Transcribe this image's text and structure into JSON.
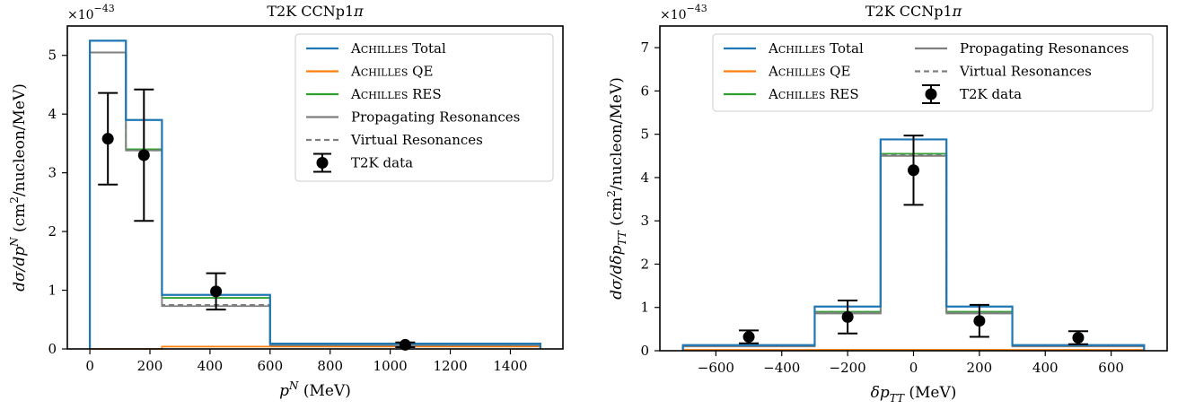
{
  "chart_data": [
    {
      "type": "histogram",
      "title": "T2K CCNp1π",
      "scale_multiplier": "×10⁻⁴³",
      "xlabel": "p^N (MeV)",
      "ylabel": "dσ/dp^N (cm²/nucleon/MeV)",
      "xlim": [
        -75,
        1575
      ],
      "ylim": [
        0,
        5.5
      ],
      "xticks": [
        0,
        200,
        400,
        600,
        800,
        1000,
        1200,
        1400
      ],
      "yticks": [
        0,
        1,
        2,
        3,
        4,
        5
      ],
      "bin_edges": [
        0,
        120,
        240,
        600,
        1500
      ],
      "series": [
        {
          "name": "Achilles Total",
          "color": "#1f77b4",
          "style": "solid",
          "values": [
            5.25,
            3.9,
            0.92,
            0.09
          ]
        },
        {
          "name": "Achilles QE",
          "color": "#ff7f0e",
          "style": "solid",
          "values": [
            0.0,
            0.0,
            0.04,
            0.04
          ]
        },
        {
          "name": "Achilles RES",
          "color": "#2ca02c",
          "style": "solid",
          "values": [
            5.05,
            3.4,
            0.87,
            0.07
          ]
        },
        {
          "name": "Propagating Resonances",
          "color": "#7f7f7f",
          "style": "solid",
          "values": [
            5.05,
            3.38,
            0.73,
            0.06
          ]
        },
        {
          "name": "Virtual Resonances",
          "color": "#7f7f7f",
          "style": "dashed",
          "values": [
            5.05,
            3.38,
            0.75,
            0.07
          ]
        }
      ],
      "data": {
        "name": "T2K data",
        "x": [
          60,
          180,
          420,
          1050
        ],
        "y": [
          3.58,
          3.3,
          0.98,
          0.07
        ],
        "yerr": [
          0.78,
          1.12,
          0.31,
          0.04
        ]
      },
      "legend": {
        "position": "top-right",
        "columns": 1
      }
    },
    {
      "type": "histogram",
      "title": "T2K CCNp1π",
      "scale_multiplier": "×10⁻⁴³",
      "xlabel": "δp_TT (MeV)",
      "ylabel": "dσ/dδp_TT (cm²/nucleon/MeV)",
      "xlim": [
        -770,
        770
      ],
      "ylim": [
        0,
        7.5
      ],
      "xticks": [
        -600,
        -400,
        -200,
        0,
        200,
        400,
        600
      ],
      "yticks": [
        0,
        1,
        2,
        3,
        4,
        5,
        6,
        7
      ],
      "bin_edges": [
        -700,
        -300,
        -100,
        100,
        300,
        700
      ],
      "series": [
        {
          "name": "Achilles Total",
          "color": "#1f77b4",
          "style": "solid",
          "values": [
            0.13,
            1.02,
            4.88,
            1.02,
            0.13
          ]
        },
        {
          "name": "Achilles QE",
          "color": "#ff7f0e",
          "style": "solid",
          "values": [
            0.02,
            0.02,
            0.02,
            0.02,
            0.02
          ]
        },
        {
          "name": "Achilles RES",
          "color": "#2ca02c",
          "style": "solid",
          "values": [
            0.11,
            0.9,
            4.55,
            0.9,
            0.11
          ]
        },
        {
          "name": "Propagating Resonances",
          "color": "#7f7f7f",
          "style": "solid",
          "values": [
            0.1,
            0.86,
            4.5,
            0.86,
            0.1
          ]
        },
        {
          "name": "Virtual Resonances",
          "color": "#7f7f7f",
          "style": "dashed",
          "values": [
            0.11,
            0.88,
            4.52,
            0.88,
            0.11
          ]
        }
      ],
      "data": {
        "name": "T2K data",
        "x": [
          -500,
          -200,
          0,
          200,
          500
        ],
        "y": [
          0.32,
          0.78,
          4.17,
          0.69,
          0.3
        ],
        "yerr": [
          0.15,
          0.38,
          0.8,
          0.37,
          0.15
        ]
      },
      "legend": {
        "position": "top",
        "columns": 2
      }
    }
  ]
}
